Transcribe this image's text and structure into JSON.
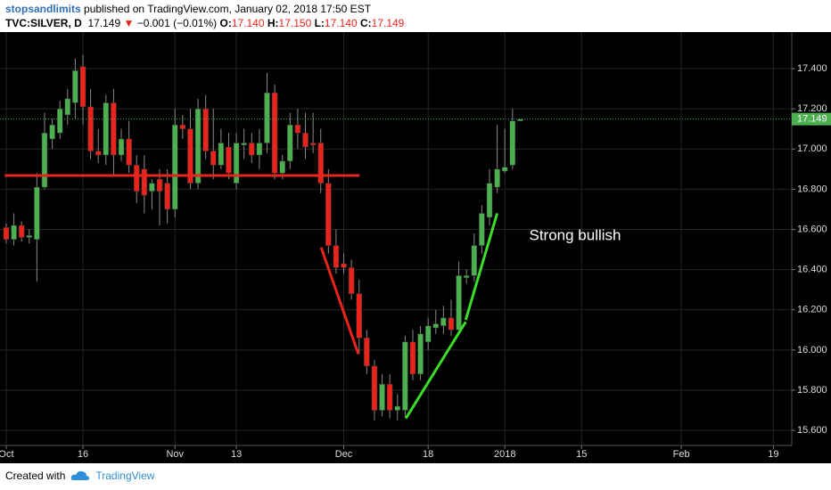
{
  "header": {
    "author": "stopsandlimits",
    "published": "published on TradingView.com, January 02, 2018 17:50 EST",
    "symbol": "TVC:SILVER, D",
    "last": "17.149",
    "change_arrow": "▼",
    "change": "−0.001 (−0.01%)",
    "ohlc": [
      {
        "key": "O:",
        "value": "17.140"
      },
      {
        "key": "H:",
        "value": "17.150"
      },
      {
        "key": "L:",
        "value": "17.140"
      },
      {
        "key": "C:",
        "value": "17.149"
      }
    ]
  },
  "chart_data": {
    "type": "candlestick",
    "x": [
      0,
      1,
      2,
      3,
      4,
      5,
      6,
      7,
      8,
      9,
      10,
      11,
      12,
      13,
      14,
      15,
      16,
      17,
      18,
      19,
      20,
      21,
      22,
      23,
      24,
      25,
      26,
      27,
      28,
      29,
      30,
      31,
      32,
      33,
      34,
      35,
      36,
      37,
      38,
      39,
      40,
      41,
      42,
      43,
      44,
      45,
      46,
      47,
      48,
      49,
      50,
      51,
      52,
      53,
      54,
      55,
      56,
      57,
      58,
      59,
      60,
      61,
      62,
      63,
      64,
      65,
      66,
      67
    ],
    "open": [
      16.61,
      16.55,
      16.62,
      16.56,
      16.55,
      16.81,
      17.05,
      17.08,
      17.17,
      17.23,
      17.41,
      17.21,
      16.99,
      16.97,
      17.23,
      16.97,
      17.05,
      16.92,
      16.9,
      16.79,
      16.85,
      16.83,
      16.7,
      17.12,
      17.1,
      16.83,
      17.2,
      16.99,
      16.92,
      17.01,
      16.83,
      17.02,
      17.03,
      16.97,
      17.03,
      17.28,
      16.88,
      16.94,
      17.12,
      17.08,
      17.03,
      17.03,
      16.83,
      16.52,
      16.43,
      16.41,
      16.28,
      16.06,
      15.92,
      15.7,
      15.83,
      15.7,
      15.7,
      16.04,
      15.88,
      16.04,
      16.11,
      16.12,
      16.16,
      16.1,
      16.36,
      16.37,
      16.52,
      16.66,
      16.81,
      16.89,
      16.92,
      17.14
    ],
    "high": [
      16.63,
      16.68,
      16.64,
      16.6,
      16.88,
      17.18,
      17.15,
      17.24,
      17.3,
      17.45,
      17.47,
      17.3,
      17.1,
      17.27,
      17.3,
      17.1,
      17.14,
      16.97,
      16.97,
      16.85,
      16.9,
      16.9,
      17.2,
      17.17,
      17.2,
      17.25,
      17.27,
      17.2,
      17.1,
      17.08,
      17.08,
      17.1,
      17.08,
      17.1,
      17.38,
      17.32,
      16.97,
      17.18,
      17.2,
      17.18,
      17.18,
      17.1,
      16.9,
      16.6,
      16.48,
      16.45,
      16.35,
      16.1,
      15.95,
      15.88,
      15.88,
      15.78,
      16.07,
      16.1,
      16.12,
      16.16,
      16.2,
      16.22,
      16.25,
      16.44,
      16.4,
      16.58,
      16.72,
      16.9,
      17.12,
      17.1,
      17.2,
      17.15
    ],
    "low": [
      16.53,
      16.52,
      16.54,
      16.53,
      16.34,
      16.8,
      17.0,
      17.05,
      17.12,
      17.15,
      17.12,
      16.95,
      16.93,
      16.92,
      16.87,
      16.94,
      16.88,
      16.73,
      16.68,
      16.7,
      16.62,
      16.63,
      16.66,
      17.05,
      16.8,
      16.8,
      16.95,
      16.85,
      16.9,
      16.85,
      16.8,
      16.95,
      16.93,
      16.9,
      16.98,
      16.85,
      16.85,
      16.9,
      17.0,
      16.95,
      16.98,
      16.78,
      16.48,
      16.38,
      16.38,
      16.25,
      15.98,
      15.88,
      15.65,
      15.67,
      15.66,
      15.65,
      15.66,
      15.85,
      15.85,
      16.0,
      16.08,
      16.08,
      16.07,
      16.08,
      16.33,
      16.34,
      16.48,
      16.62,
      16.78,
      16.88,
      16.9,
      17.14
    ],
    "close": [
      16.55,
      16.62,
      16.56,
      16.57,
      16.81,
      17.08,
      17.12,
      17.2,
      17.25,
      17.39,
      17.21,
      16.99,
      16.97,
      17.23,
      16.97,
      17.05,
      16.92,
      16.79,
      16.77,
      16.83,
      16.79,
      16.7,
      17.12,
      17.1,
      16.83,
      17.2,
      16.99,
      16.92,
      17.03,
      16.88,
      17.03,
      17.03,
      16.97,
      17.03,
      17.28,
      16.88,
      16.94,
      17.12,
      17.08,
      17.01,
      17.02,
      16.83,
      16.52,
      16.41,
      16.41,
      16.28,
      16.06,
      15.92,
      15.7,
      15.83,
      15.7,
      15.72,
      16.04,
      15.88,
      16.08,
      16.12,
      16.13,
      16.16,
      16.1,
      16.37,
      16.37,
      16.52,
      16.68,
      16.83,
      16.9,
      16.91,
      17.14,
      17.149
    ],
    "up_color": "#4caf50",
    "down_color": "#e8241c",
    "xlim": [
      -0.81,
      102.4
    ],
    "xticks": [
      {
        "value": 0,
        "label": "Oct"
      },
      {
        "value": 10,
        "label": "16"
      },
      {
        "value": 22,
        "label": "Nov"
      },
      {
        "value": 30,
        "label": "13"
      },
      {
        "value": 44,
        "label": "Dec"
      },
      {
        "value": 55,
        "label": "18"
      },
      {
        "value": 65,
        "label": "2018"
      },
      {
        "value": 75,
        "label": "15"
      },
      {
        "value": 88,
        "label": "Feb"
      },
      {
        "value": 100,
        "label": "19"
      }
    ],
    "ylim": [
      15.525,
      17.582
    ],
    "yticks": [
      {
        "value": 15.6,
        "label": "15.600"
      },
      {
        "value": 15.8,
        "label": "15.800"
      },
      {
        "value": 16.0,
        "label": "16.000"
      },
      {
        "value": 16.2,
        "label": "16.200"
      },
      {
        "value": 16.4,
        "label": "16.400"
      },
      {
        "value": 16.6,
        "label": "16.600"
      },
      {
        "value": 16.8,
        "label": "16.800"
      },
      {
        "value": 17.0,
        "label": "17.000"
      },
      {
        "value": 17.2,
        "label": "17.200"
      },
      {
        "value": 17.4,
        "label": "17.400"
      }
    ],
    "grid": true,
    "last_price": 17.149,
    "last_price_color": "#4caf50",
    "drawings": [
      {
        "color": "#e8241c",
        "x": [
          -0.2,
          46.05
        ],
        "y": [
          16.868,
          16.868
        ]
      },
      {
        "color": "#e8241c",
        "x": [
          41.05,
          45.9
        ],
        "y": [
          16.51,
          15.98
        ]
      },
      {
        "color": "#3ddc2a",
        "x": [
          52.1,
          59.9
        ],
        "y": [
          15.66,
          16.14
        ]
      },
      {
        "color": "#3ddc2a",
        "x": [
          59.9,
          64.0
        ],
        "y": [
          16.15,
          16.68
        ]
      }
    ],
    "annotation": "Strong bullish"
  },
  "footer": {
    "created": "Created with",
    "brand": "TradingView"
  }
}
